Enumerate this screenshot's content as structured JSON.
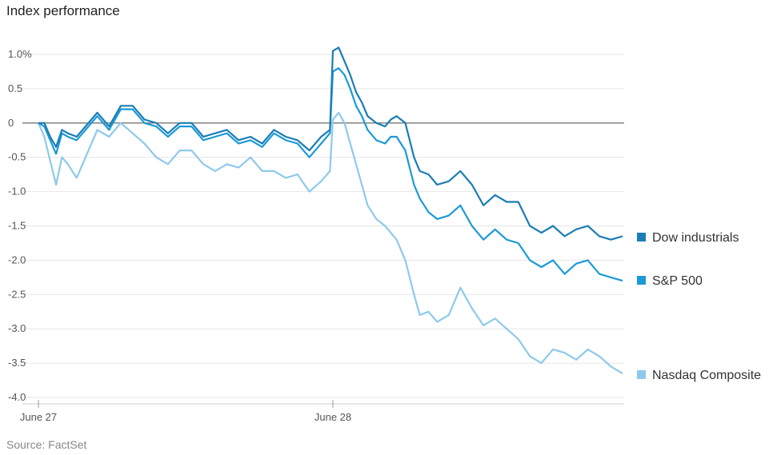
{
  "header": {
    "title": "Index performance"
  },
  "footer": {
    "source": "Source: FactSet"
  },
  "chart_data": {
    "type": "line",
    "title": "Index performance",
    "xlabel": "",
    "ylabel": "",
    "ylim": [
      -4.0,
      1.0
    ],
    "y_ticks": [
      {
        "value": 1.0,
        "label": "1.0%"
      },
      {
        "value": 0.5,
        "label": "0.5"
      },
      {
        "value": 0,
        "label": "0"
      },
      {
        "value": -0.5,
        "label": "-0.5"
      },
      {
        "value": -1.0,
        "label": "-1.0"
      },
      {
        "value": -1.5,
        "label": "-1.5"
      },
      {
        "value": -2.0,
        "label": "-2.0"
      },
      {
        "value": -2.5,
        "label": "-2.5"
      },
      {
        "value": -3.0,
        "label": "-3.0"
      },
      {
        "value": -3.5,
        "label": "-3.5"
      },
      {
        "value": -4.0,
        "label": "-4.0"
      }
    ],
    "x_ticks": [
      {
        "value": 0,
        "label": "June 27"
      },
      {
        "value": 1,
        "label": "June 28"
      }
    ],
    "x_range": [
      0,
      2
    ],
    "grid": true,
    "legend_position": "right",
    "series": [
      {
        "name": "Dow industrials",
        "color": "#1a7db5",
        "x": [
          0,
          0.02,
          0.04,
          0.06,
          0.08,
          0.1,
          0.13,
          0.16,
          0.2,
          0.24,
          0.28,
          0.32,
          0.36,
          0.4,
          0.44,
          0.48,
          0.52,
          0.56,
          0.6,
          0.64,
          0.68,
          0.72,
          0.76,
          0.8,
          0.84,
          0.88,
          0.92,
          0.96,
          0.99,
          1.0,
          1.02,
          1.04,
          1.06,
          1.08,
          1.1,
          1.12,
          1.15,
          1.18,
          1.2,
          1.22,
          1.25,
          1.28,
          1.3,
          1.33,
          1.36,
          1.4,
          1.44,
          1.48,
          1.52,
          1.56,
          1.6,
          1.64,
          1.68,
          1.72,
          1.76,
          1.8,
          1.84,
          1.88,
          1.92,
          1.96,
          2.0
        ],
        "values": [
          0,
          0,
          -0.2,
          -0.35,
          -0.1,
          -0.15,
          -0.2,
          -0.05,
          0.15,
          -0.05,
          0.25,
          0.25,
          0.05,
          0.0,
          -0.15,
          0.0,
          0.0,
          -0.2,
          -0.15,
          -0.1,
          -0.25,
          -0.2,
          -0.3,
          -0.1,
          -0.2,
          -0.25,
          -0.4,
          -0.2,
          -0.1,
          1.05,
          1.1,
          0.9,
          0.7,
          0.45,
          0.3,
          0.1,
          0.0,
          -0.05,
          0.05,
          0.1,
          0.0,
          -0.5,
          -0.7,
          -0.75,
          -0.9,
          -0.85,
          -0.7,
          -0.9,
          -1.2,
          -1.05,
          -1.15,
          -1.15,
          -1.5,
          -1.6,
          -1.5,
          -1.65,
          -1.55,
          -1.5,
          -1.65,
          -1.7,
          -1.65
        ]
      },
      {
        "name": "S&P 500",
        "color": "#1b9ad6",
        "x": [
          0,
          0.02,
          0.04,
          0.06,
          0.08,
          0.1,
          0.13,
          0.16,
          0.2,
          0.24,
          0.28,
          0.32,
          0.36,
          0.4,
          0.44,
          0.48,
          0.52,
          0.56,
          0.6,
          0.64,
          0.68,
          0.72,
          0.76,
          0.8,
          0.84,
          0.88,
          0.92,
          0.96,
          0.99,
          1.0,
          1.02,
          1.04,
          1.06,
          1.08,
          1.1,
          1.12,
          1.15,
          1.18,
          1.2,
          1.22,
          1.25,
          1.28,
          1.3,
          1.33,
          1.36,
          1.4,
          1.44,
          1.48,
          1.52,
          1.56,
          1.6,
          1.64,
          1.68,
          1.72,
          1.76,
          1.8,
          1.84,
          1.88,
          1.92,
          1.96,
          2.0
        ],
        "values": [
          0,
          -0.05,
          -0.25,
          -0.45,
          -0.15,
          -0.2,
          -0.25,
          -0.1,
          0.1,
          -0.1,
          0.2,
          0.2,
          0.0,
          -0.05,
          -0.2,
          -0.05,
          -0.05,
          -0.25,
          -0.2,
          -0.15,
          -0.3,
          -0.25,
          -0.35,
          -0.15,
          -0.25,
          -0.3,
          -0.5,
          -0.3,
          -0.15,
          0.75,
          0.8,
          0.7,
          0.5,
          0.25,
          0.1,
          -0.1,
          -0.25,
          -0.3,
          -0.2,
          -0.2,
          -0.4,
          -0.9,
          -1.1,
          -1.3,
          -1.4,
          -1.35,
          -1.2,
          -1.5,
          -1.7,
          -1.55,
          -1.7,
          -1.75,
          -2.0,
          -2.1,
          -2.0,
          -2.2,
          -2.05,
          -2.0,
          -2.2,
          -2.25,
          -2.3
        ]
      },
      {
        "name": "Nasdaq Composite",
        "color": "#8ec9ec",
        "x": [
          0,
          0.02,
          0.04,
          0.06,
          0.08,
          0.1,
          0.13,
          0.16,
          0.2,
          0.24,
          0.28,
          0.32,
          0.36,
          0.4,
          0.44,
          0.48,
          0.52,
          0.56,
          0.6,
          0.64,
          0.68,
          0.72,
          0.76,
          0.8,
          0.84,
          0.88,
          0.92,
          0.96,
          0.99,
          1.0,
          1.02,
          1.04,
          1.06,
          1.08,
          1.1,
          1.12,
          1.15,
          1.18,
          1.2,
          1.22,
          1.25,
          1.28,
          1.3,
          1.33,
          1.36,
          1.4,
          1.44,
          1.48,
          1.52,
          1.56,
          1.6,
          1.64,
          1.68,
          1.72,
          1.76,
          1.8,
          1.84,
          1.88,
          1.92,
          1.96,
          2.0
        ],
        "values": [
          0,
          -0.2,
          -0.55,
          -0.9,
          -0.5,
          -0.6,
          -0.8,
          -0.5,
          -0.1,
          -0.2,
          0.0,
          -0.15,
          -0.3,
          -0.5,
          -0.6,
          -0.4,
          -0.4,
          -0.6,
          -0.7,
          -0.6,
          -0.65,
          -0.5,
          -0.7,
          -0.7,
          -0.8,
          -0.75,
          -1.0,
          -0.85,
          -0.7,
          0.05,
          0.15,
          0.0,
          -0.3,
          -0.6,
          -0.9,
          -1.2,
          -1.4,
          -1.5,
          -1.6,
          -1.7,
          -2.0,
          -2.5,
          -2.8,
          -2.75,
          -2.9,
          -2.8,
          -2.4,
          -2.7,
          -2.95,
          -2.85,
          -3.0,
          -3.15,
          -3.4,
          -3.5,
          -3.3,
          -3.35,
          -3.45,
          -3.3,
          -3.4,
          -3.55,
          -3.65
        ]
      }
    ]
  }
}
